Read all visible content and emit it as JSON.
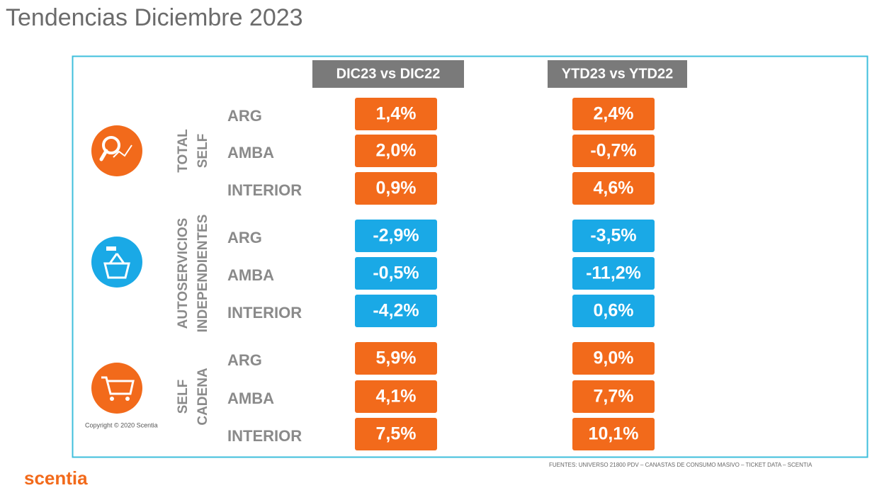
{
  "title": "Tendencias Diciembre 2023",
  "columns": [
    "DIC23 vs DIC22",
    "YTD23 vs YTD22"
  ],
  "groups": [
    {
      "label": [
        "TOTAL",
        "SELF"
      ],
      "color": "#f26a1b",
      "rows": [
        {
          "region": "ARG",
          "values": [
            "1,4%",
            "2,4%"
          ]
        },
        {
          "region": "AMBA",
          "values": [
            "2,0%",
            "-0,7%"
          ]
        },
        {
          "region": "INTERIOR",
          "values": [
            "0,9%",
            "4,6%"
          ]
        }
      ]
    },
    {
      "label": [
        "AUTOSERVICIOS",
        "INDEPENDIENTES"
      ],
      "color": "#1aa9e6",
      "rows": [
        {
          "region": "ARG",
          "values": [
            "-2,9%",
            "-3,5%"
          ]
        },
        {
          "region": "AMBA",
          "values": [
            "-0,5%",
            "-11,2%"
          ]
        },
        {
          "region": "INTERIOR",
          "values": [
            "-4,2%",
            "0,6%"
          ]
        }
      ]
    },
    {
      "label": [
        "SELF",
        "CADENA"
      ],
      "color": "#f26a1b",
      "rows": [
        {
          "region": "ARG",
          "values": [
            "5,9%",
            "9,0%"
          ]
        },
        {
          "region": "AMBA",
          "values": [
            "4,1%",
            "7,7%"
          ]
        },
        {
          "region": "INTERIOR",
          "values": [
            "7,5%",
            "10,1%"
          ]
        }
      ]
    }
  ],
  "copyright": "Copyright © 2020 Scentia",
  "sources": "FUENTES: UNIVERSO 21800 PDV – CANASTAS DE CONSUMO MASIVO – TICKET DATA  – SCENTIA",
  "logo": "scentia"
}
